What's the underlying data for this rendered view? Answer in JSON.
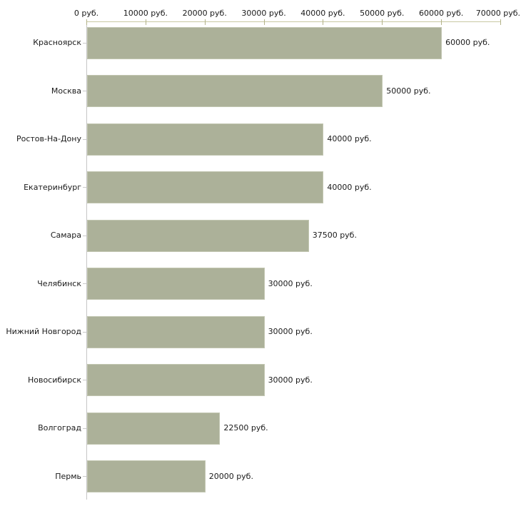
{
  "chart_data": {
    "type": "bar",
    "orientation": "horizontal",
    "unit": "руб.",
    "categories": [
      "Красноярск",
      "Москва",
      "Ростов-На-Дону",
      "Екатеринбург",
      "Самара",
      "Челябинск",
      "Нижний Новгород",
      "Новосибирск",
      "Волгоград",
      "Пермь"
    ],
    "values": [
      60000,
      50000,
      40000,
      40000,
      37500,
      30000,
      30000,
      30000,
      22500,
      20000
    ],
    "value_labels": [
      "60000 руб.",
      "50000 руб.",
      "40000 руб.",
      "40000 руб.",
      "37500 руб.",
      "30000 руб.",
      "30000 руб.",
      "30000 руб.",
      "22500 руб.",
      "20000 руб."
    ],
    "x_axis": {
      "position": "top",
      "tick_values": [
        0,
        10000,
        20000,
        30000,
        40000,
        50000,
        60000,
        70000
      ],
      "tick_labels": [
        "0 руб.",
        "10000 руб.",
        "20000 руб.",
        "30000 руб.",
        "40000 руб.",
        "50000 руб.",
        "60000 руб.",
        "70000 руб."
      ],
      "xlim": [
        0,
        70000
      ]
    },
    "grid": false,
    "legend": false,
    "colors": {
      "bar_fill": "#acb199",
      "bar_border": "#c2c6b1",
      "x_axis_line": "#c8c8a2",
      "x_axis_tick": "#b3b389",
      "y_axis_line": "#c6c6c6",
      "y_axis_tick": "#c9c9c9",
      "label_text": "#1a1a1a",
      "background": "#ffffff"
    }
  }
}
